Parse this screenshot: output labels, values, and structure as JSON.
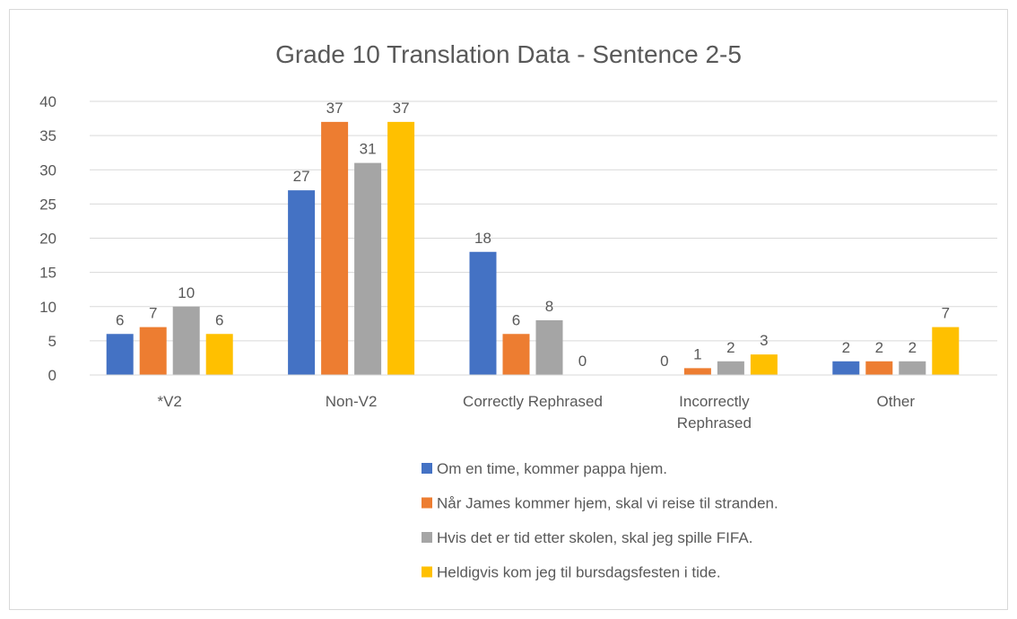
{
  "chart_data": {
    "type": "bar",
    "title": "Grade 10 Translation Data - Sentence 2-5",
    "categories": [
      "*V2",
      "Non-V2",
      "Correctly Rephrased",
      "Incorrectly Rephrased",
      "Other"
    ],
    "series": [
      {
        "name": "Om en time, kommer pappa hjem.",
        "color": "#4472c4",
        "values": [
          6,
          27,
          18,
          0,
          2
        ]
      },
      {
        "name": "Når James kommer hjem, skal vi reise til stranden.",
        "color": "#ed7d31",
        "values": [
          7,
          37,
          6,
          1,
          2
        ]
      },
      {
        "name": "Hvis det er tid etter skolen, skal jeg spille FIFA.",
        "color": "#a5a5a5",
        "values": [
          10,
          31,
          8,
          2,
          2
        ]
      },
      {
        "name": "Heldigvis kom jeg til bursdagsfesten i tide.",
        "color": "#ffc000",
        "values": [
          6,
          37,
          0,
          3,
          7
        ]
      }
    ],
    "ylim": [
      0,
      40
    ],
    "yticks": [
      0,
      5,
      10,
      15,
      20,
      25,
      30,
      35,
      40
    ],
    "grid": true,
    "legend": "bottom"
  }
}
